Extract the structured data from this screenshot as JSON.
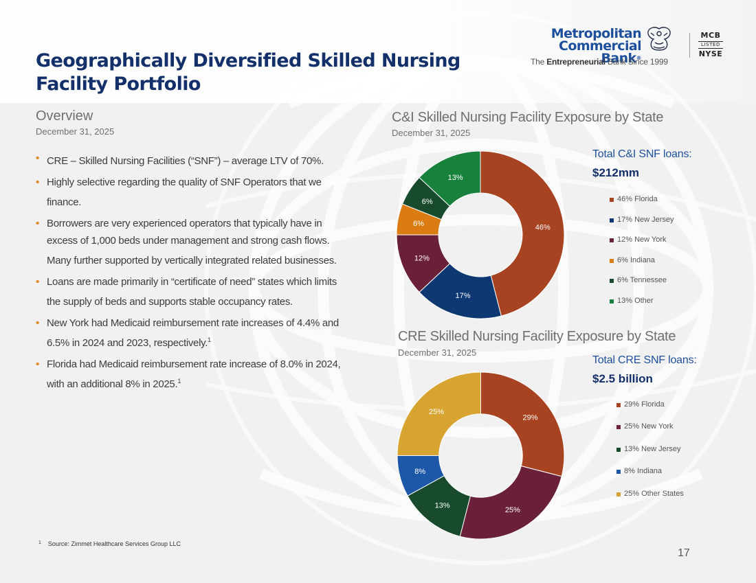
{
  "header": {
    "title": "Geographically Diversified Skilled Nursing Facility Portfolio"
  },
  "logo": {
    "name_line1": "Metropolitan",
    "name_line2": "Commercial Bank",
    "registered": "®",
    "tagline_prefix": "The ",
    "tagline_bold": "Entrepreneurial",
    "tagline_suffix": " Bank Since 1999",
    "listing_ticker": "MCB",
    "listing_label": "LISTED",
    "listing_exchange": "NYSE",
    "brand_color": "#1d4f9c"
  },
  "overview": {
    "heading": "Overview",
    "date": "December 31, 2025",
    "bullets": [
      {
        "text": "CRE – Skilled Nursing Facilities (“SNF”) – average LTV of 70%.",
        "sup": ""
      },
      {
        "text": "Highly selective regarding the quality of SNF Operators that we finance.",
        "sup": ""
      },
      {
        "text": "Borrowers are very experienced operators that typically have in excess of 1,000 beds under management and strong cash flows. Many further supported by vertically integrated related businesses.",
        "sup": ""
      },
      {
        "text": "Loans are made primarily in “certificate of need” states which limits the supply of beds and supports stable occupancy rates.",
        "sup": ""
      },
      {
        "text": "New York had Medicaid reimbursement rate increases of 4.4% and 6.5% in 2024 and 2023, respectively.",
        "sup": "1"
      },
      {
        "text": "Florida had Medicaid reimbursement rate increase of 8.0% in 2024, with an additional 8% in 2025.",
        "sup": "1"
      }
    ],
    "bullet_color": "#e08a26"
  },
  "footnote": {
    "number": "1",
    "text": "Source: Zimmet Healthcare Services Group LLC"
  },
  "page_number": "17",
  "chart_data": [
    {
      "type": "pie",
      "style": "donut",
      "title": "C&I Skilled Nursing Facility Exposure by State",
      "subtitle": "December 31, 2025",
      "total_label": "Total C&I SNF loans:",
      "total_value": "$212mm",
      "slice_labels": [
        "46%",
        "17%",
        "12%",
        "6%",
        "6%",
        "13%"
      ],
      "legend_labels": [
        "46% Florida",
        "17% New Jersey",
        "12% New York",
        "6% Indiana",
        "6% Tennessee",
        "13% Other"
      ],
      "values": [
        46,
        17,
        12,
        6,
        6,
        13
      ],
      "colors": [
        "#a84321",
        "#0d3872",
        "#6a2038",
        "#db7c12",
        "#184a2e",
        "#18823d"
      ],
      "legend_position": "right"
    },
    {
      "type": "pie",
      "style": "donut",
      "title": "CRE Skilled Nursing Facility Exposure by State",
      "subtitle": "December 31, 2025",
      "total_label": "Total CRE SNF loans:",
      "total_value": "$2.5 billion",
      "slice_labels": [
        "29%",
        "25%",
        "13%",
        "8%",
        "25%"
      ],
      "legend_labels": [
        "29% Florida",
        "25% New York",
        "13% New Jersey",
        "8% Indiana",
        "25% Other States"
      ],
      "values": [
        29,
        25,
        13,
        8,
        25
      ],
      "colors": [
        "#a84321",
        "#6a2038",
        "#184a2e",
        "#1d58a8",
        "#d8a431"
      ],
      "legend_position": "right"
    }
  ]
}
